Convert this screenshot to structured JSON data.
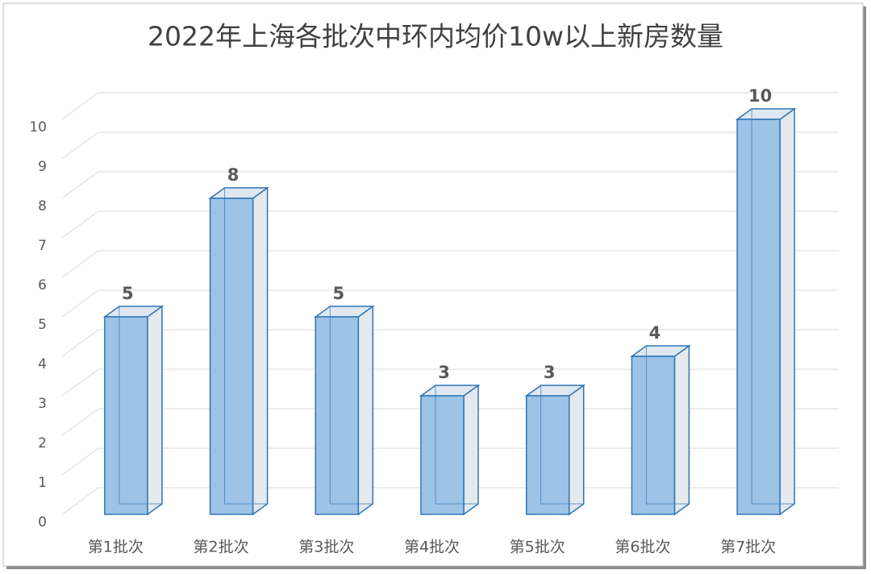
{
  "chart_data": {
    "type": "bar3d",
    "title": "2022年上海各批次中环内均价10w以上新房数量",
    "categories": [
      "第1批次",
      "第2批次",
      "第3批次",
      "第4批次",
      "第5批次",
      "第6批次",
      "第7批次"
    ],
    "values": [
      5,
      8,
      5,
      3,
      3,
      4,
      10
    ],
    "color": "#9dc3e6",
    "ylim": [
      0,
      10
    ],
    "yticks": [
      0,
      1,
      2,
      3,
      4,
      5,
      6,
      7,
      8,
      9,
      10
    ],
    "grid": true
  }
}
